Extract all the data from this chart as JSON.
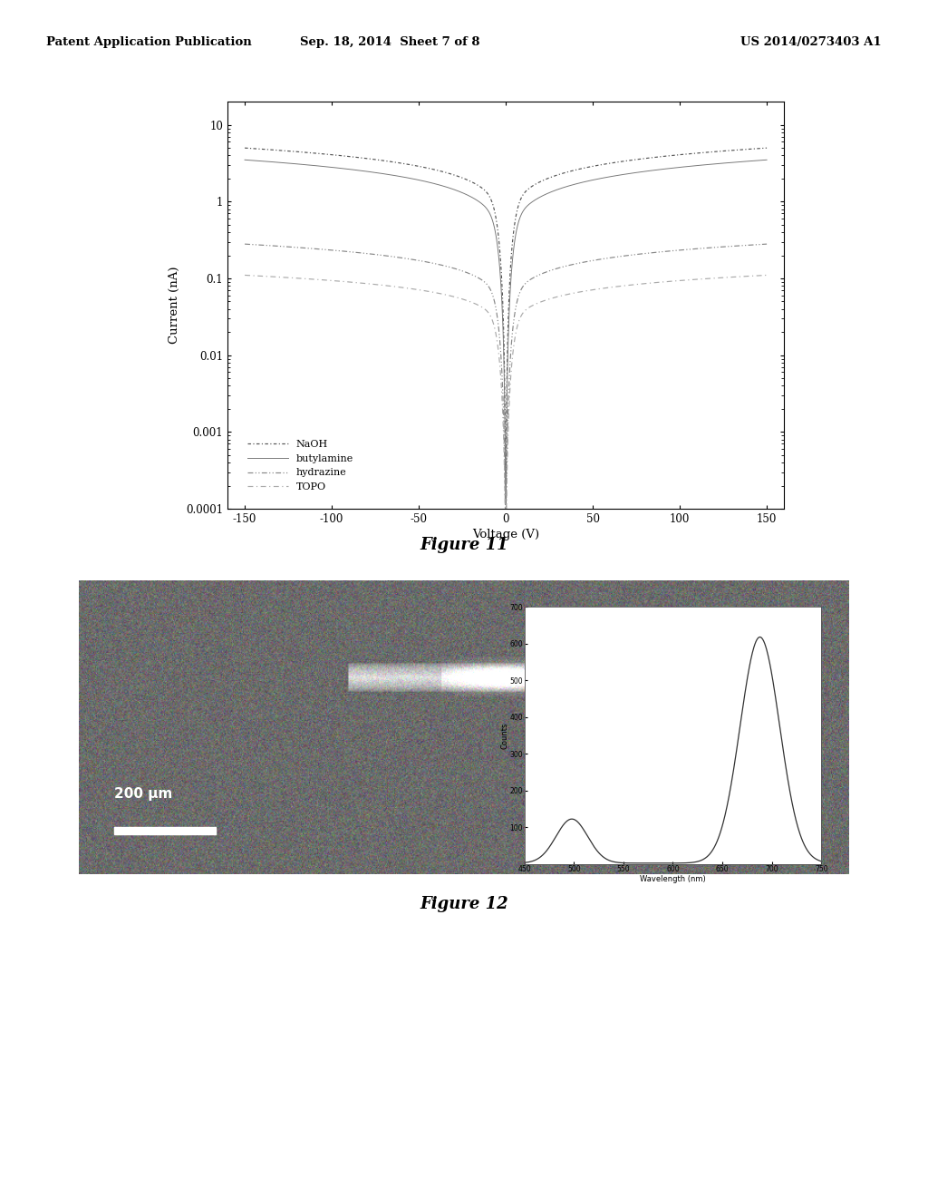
{
  "header_left": "Patent Application Publication",
  "header_center": "Sep. 18, 2014  Sheet 7 of 8",
  "header_right": "US 2014/0273403 A1",
  "fig11_title": "Figure 11",
  "fig12_title": "Figure 12",
  "fig11_xlabel": "Voltage (V)",
  "fig11_ylabel": "Current (nA)",
  "fig11_xlim": [
    -160,
    160
  ],
  "fig11_ylim_log": [
    0.0001,
    20
  ],
  "fig11_xticks": [
    -150,
    -100,
    -50,
    0,
    50,
    100,
    150
  ],
  "fig11_yticks": [
    0.0001,
    0.001,
    0.01,
    0.1,
    1,
    10
  ],
  "fig11_ytick_labels": [
    "0.0001",
    "0.001",
    "0.01",
    "0.1",
    "1",
    "10"
  ],
  "legend_labels": [
    "NaOH",
    "butylamine",
    "hydrazine",
    "TOPO"
  ],
  "bg_color": "#ffffff",
  "fig12_scale_text": "200 μm",
  "spectrum_xlabel": "Wavelength (nm)",
  "spectrum_ylabel": "Counts",
  "spectrum_xlim": [
    450,
    750
  ],
  "spectrum_ylim": [
    0,
    700
  ],
  "spectrum_yticks": [
    100,
    200,
    300,
    400,
    500,
    600,
    700
  ],
  "spectrum_xticks": [
    450,
    500,
    550,
    600,
    650,
    700,
    750
  ]
}
